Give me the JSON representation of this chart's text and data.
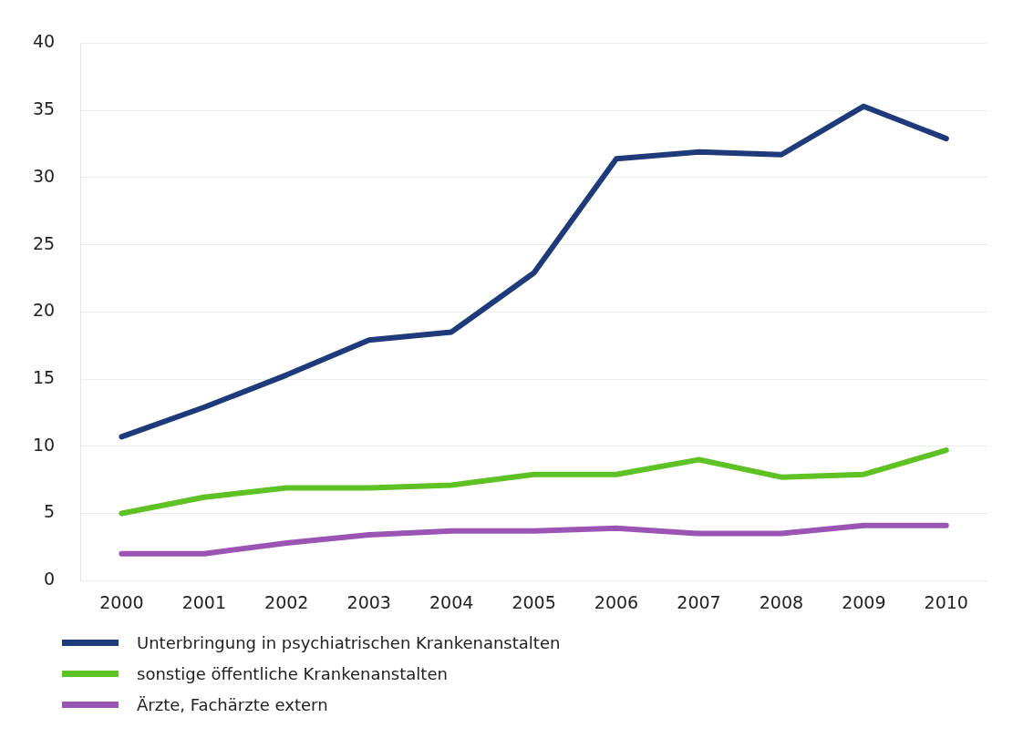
{
  "chart_data": {
    "type": "line",
    "categories": [
      "2000",
      "2001",
      "2002",
      "2003",
      "2004",
      "2005",
      "2006",
      "2007",
      "2008",
      "2009",
      "2010"
    ],
    "series": [
      {
        "name": "Unterbringung in psychiatrischen Krankenanstalten",
        "color": "#1f3a7a",
        "values": [
          10.7,
          12.9,
          15.3,
          17.9,
          18.5,
          22.9,
          31.4,
          31.9,
          31.7,
          35.3,
          32.9
        ]
      },
      {
        "name": "sonstige öffentliche Krankenanstalten",
        "color": "#5ec224",
        "values": [
          5.0,
          6.2,
          6.9,
          6.9,
          7.1,
          7.9,
          7.9,
          9.0,
          7.7,
          7.9,
          9.7
        ]
      },
      {
        "name": "Ärzte, Fachärzte extern",
        "color": "#9a55b4",
        "values": [
          2.0,
          2.0,
          2.8,
          3.4,
          3.7,
          3.7,
          3.9,
          3.5,
          3.5,
          4.1,
          4.1
        ]
      }
    ],
    "ylim": [
      0,
      40
    ],
    "yticks": [
      0,
      5,
      10,
      15,
      20,
      25,
      30,
      35,
      40
    ],
    "grid": "y",
    "legend": "bottom",
    "marker": "none",
    "line_style": "solid"
  }
}
